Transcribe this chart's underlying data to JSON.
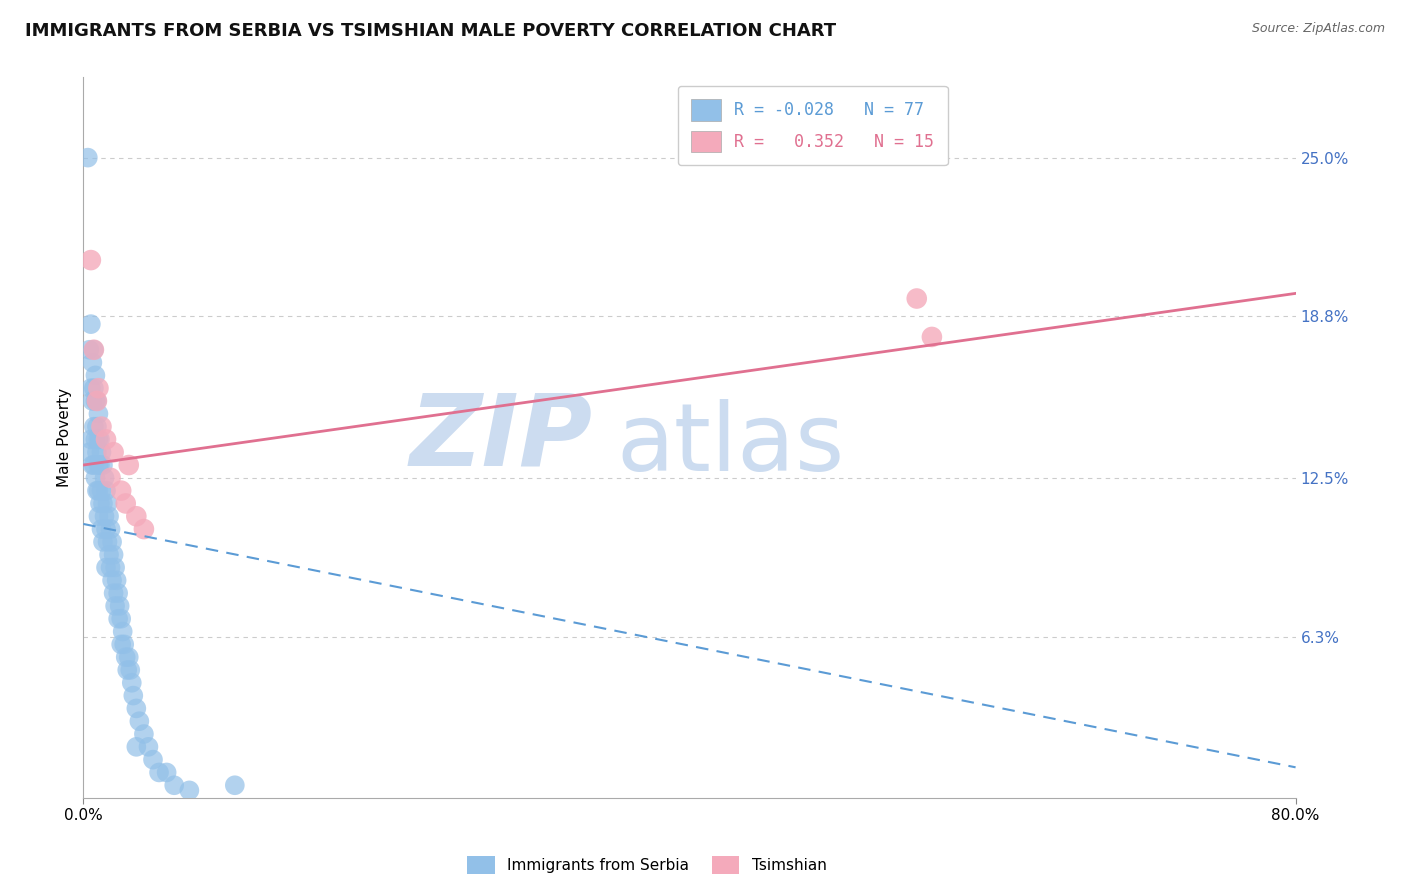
{
  "title": "IMMIGRANTS FROM SERBIA VS TSIMSHIAN MALE POVERTY CORRELATION CHART",
  "source": "Source: ZipAtlas.com",
  "ylabel": "Male Poverty",
  "xlim": [
    0.0,
    0.8
  ],
  "ylim": [
    0.0,
    0.2813
  ],
  "ytick_vals": [
    0.063,
    0.125,
    0.188,
    0.25
  ],
  "ytick_labels": [
    "6.3%",
    "12.5%",
    "18.8%",
    "25.0%"
  ],
  "serbia_R": -0.028,
  "serbia_N": 77,
  "tsimshian_R": 0.352,
  "tsimshian_N": 15,
  "serbia_color": "#92C0E8",
  "tsimshian_color": "#F4AABB",
  "serbia_line_color": "#5B9BD5",
  "tsimshian_line_color": "#E07090",
  "background_color": "#ffffff",
  "grid_color": "#cccccc",
  "watermark_zip": "ZIP",
  "watermark_atlas": "atlas",
  "watermark_color": "#ccdcf0",
  "title_fontsize": 13,
  "axis_label_fontsize": 11,
  "tick_fontsize": 11,
  "right_tick_color": "#4472C4",
  "serbia_x": [
    0.003,
    0.004,
    0.004,
    0.005,
    0.005,
    0.005,
    0.006,
    0.006,
    0.006,
    0.007,
    0.007,
    0.007,
    0.007,
    0.008,
    0.008,
    0.008,
    0.008,
    0.009,
    0.009,
    0.009,
    0.009,
    0.01,
    0.01,
    0.01,
    0.01,
    0.01,
    0.011,
    0.011,
    0.011,
    0.012,
    0.012,
    0.012,
    0.013,
    0.013,
    0.013,
    0.014,
    0.014,
    0.015,
    0.015,
    0.015,
    0.016,
    0.016,
    0.017,
    0.017,
    0.018,
    0.018,
    0.019,
    0.019,
    0.02,
    0.02,
    0.021,
    0.021,
    0.022,
    0.023,
    0.023,
    0.024,
    0.025,
    0.025,
    0.026,
    0.027,
    0.028,
    0.029,
    0.03,
    0.031,
    0.032,
    0.033,
    0.035,
    0.037,
    0.04,
    0.043,
    0.046,
    0.05,
    0.055,
    0.06,
    0.07,
    0.1,
    0.035
  ],
  "serbia_y": [
    0.25,
    0.175,
    0.135,
    0.185,
    0.16,
    0.14,
    0.17,
    0.155,
    0.13,
    0.175,
    0.16,
    0.145,
    0.13,
    0.165,
    0.155,
    0.14,
    0.125,
    0.155,
    0.145,
    0.135,
    0.12,
    0.15,
    0.14,
    0.13,
    0.12,
    0.11,
    0.14,
    0.13,
    0.115,
    0.135,
    0.12,
    0.105,
    0.13,
    0.115,
    0.1,
    0.125,
    0.11,
    0.12,
    0.105,
    0.09,
    0.115,
    0.1,
    0.11,
    0.095,
    0.105,
    0.09,
    0.1,
    0.085,
    0.095,
    0.08,
    0.09,
    0.075,
    0.085,
    0.08,
    0.07,
    0.075,
    0.07,
    0.06,
    0.065,
    0.06,
    0.055,
    0.05,
    0.055,
    0.05,
    0.045,
    0.04,
    0.035,
    0.03,
    0.025,
    0.02,
    0.015,
    0.01,
    0.01,
    0.005,
    0.003,
    0.005,
    0.02
  ],
  "tsimshian_x": [
    0.005,
    0.007,
    0.009,
    0.01,
    0.012,
    0.015,
    0.018,
    0.02,
    0.025,
    0.028,
    0.03,
    0.035,
    0.04,
    0.55,
    0.56
  ],
  "tsimshian_y": [
    0.21,
    0.175,
    0.155,
    0.16,
    0.145,
    0.14,
    0.125,
    0.135,
    0.12,
    0.115,
    0.13,
    0.11,
    0.105,
    0.195,
    0.18
  ],
  "serbia_line_x0": 0.0,
  "serbia_line_x1": 0.8,
  "serbia_line_y0": 0.107,
  "serbia_line_y1": 0.012,
  "tsim_line_x0": 0.0,
  "tsim_line_x1": 0.8,
  "tsim_line_y0": 0.13,
  "tsim_line_y1": 0.197
}
